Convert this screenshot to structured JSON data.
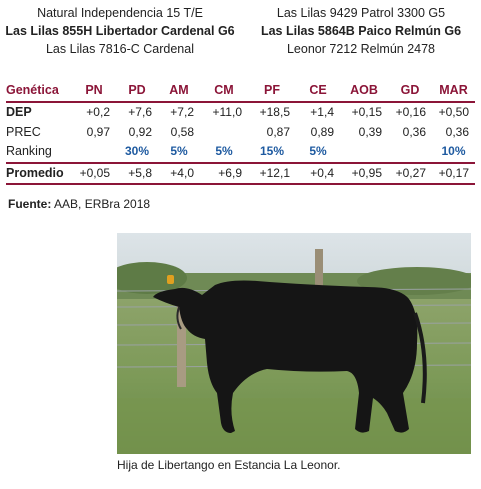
{
  "pedigree": {
    "row1": {
      "left": "Natural Independencia 15 T/E",
      "right": "Las Lilas 9429 Patrol 3300 G5"
    },
    "row2": {
      "left": "Las Lilas 855H Libertador Cardenal G6",
      "right": "Las Lilas 5864B Paico Relmún G6"
    },
    "row3": {
      "left": "Las Lilas 7816-C Cardenal",
      "right": "Leonor 7212 Relmún 2478"
    }
  },
  "table": {
    "headers": [
      "Genética",
      "PN",
      "PD",
      "AM",
      "CM",
      "PF",
      "CE",
      "AOB",
      "GD",
      "MAR"
    ],
    "rows": [
      {
        "label": "DEP",
        "values": [
          "+0,2",
          "+7,6",
          "+7,2",
          "+11,0",
          "+18,5",
          "+1,4",
          "+0,15",
          "+0,16",
          "+0,50"
        ]
      },
      {
        "label": "PREC",
        "values": [
          "0,97",
          "0,92",
          "0,58",
          "",
          "0,87",
          "0,89",
          "0,39",
          "0,36",
          "0,36"
        ]
      },
      {
        "label": "Ranking",
        "values": [
          "",
          "30%",
          "5%",
          "5%",
          "15%",
          "5%",
          "",
          "",
          "10%"
        ]
      },
      {
        "label": "Promedio",
        "values": [
          "+0,05",
          "+5,8",
          "+4,0",
          "+6,9",
          "+12,1",
          "+0,4",
          "+0,95",
          "+0,27",
          "+0,17"
        ]
      }
    ]
  },
  "source": {
    "label": "Fuente:",
    "text": " AAB, ERBra 2018"
  },
  "photo": {
    "caption": "Hija de Libertango en Estancia La Leonor."
  },
  "colors": {
    "accent": "#8b1538",
    "ranking": "#1e5aa0"
  }
}
